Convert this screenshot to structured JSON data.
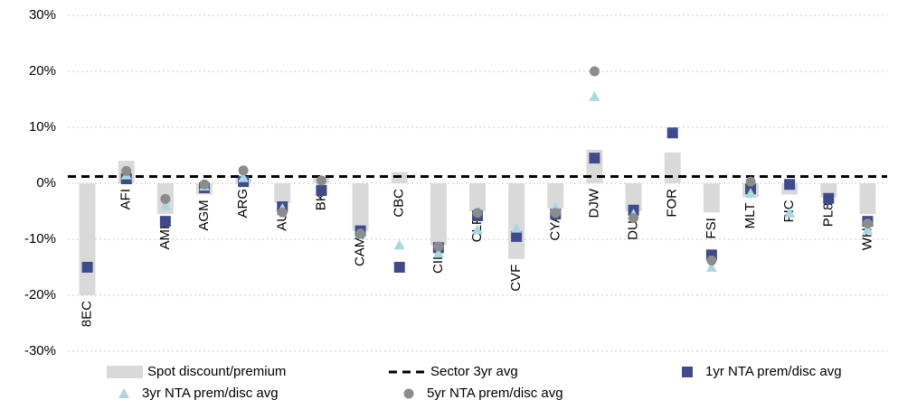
{
  "chart_data": {
    "type": "bar-scatter",
    "categories": [
      "8EC",
      "AFI",
      "AMH",
      "AGM",
      "ARG",
      "AUI",
      "BKI",
      "CAM",
      "CBC",
      "CIN",
      "CLF",
      "CVF",
      "CYA",
      "DJW",
      "DUI",
      "FOR",
      "FSI",
      "MLT",
      "PIC",
      "PL8",
      "WHF"
    ],
    "series": [
      {
        "name": "Spot discount/premium",
        "color": "#d9d9d9",
        "marker": "bar",
        "values": [
          -20,
          4,
          -5.5,
          -2,
          1.5,
          -3.5,
          1,
          -8.5,
          2,
          -11,
          -5,
          -13.5,
          -4.5,
          6,
          -5,
          5.5,
          -5.2,
          -2.5,
          -2,
          -2.5,
          -5.5
        ]
      },
      {
        "name": "1yr NTA prem/disc avg",
        "color": "#3f4a8a",
        "marker": "square",
        "values": [
          -15,
          0.8,
          -6.8,
          -0.8,
          0.3,
          -4.2,
          -1.3,
          -8.5,
          -15,
          -11.5,
          -5.8,
          -9.5,
          -5.5,
          4.5,
          -4.8,
          9,
          -12.8,
          -1,
          -0.2,
          -2.7,
          -6.8
        ]
      },
      {
        "name": "3yr NTA prem/disc avg",
        "color": "#a8d8e0",
        "marker": "triangle",
        "values": [
          null,
          1.5,
          -4,
          -0.5,
          1,
          -4.5,
          0.5,
          -9,
          -11,
          -12.5,
          -8.3,
          -8,
          -4.3,
          15.5,
          -5.5,
          null,
          -15,
          -1.8,
          -5.3,
          null,
          -8.3
        ]
      },
      {
        "name": "5yr NTA prem/disc avg",
        "color": "#8c8c8c",
        "marker": "circle",
        "values": [
          null,
          2.2,
          -2.8,
          -0.2,
          2.3,
          -5.2,
          0.5,
          -9,
          null,
          -11.3,
          -5.3,
          null,
          -5.3,
          20,
          -6.2,
          null,
          -13.8,
          0.3,
          null,
          null,
          -7.2
        ]
      }
    ],
    "reference_line": {
      "name": "Sector 3yr avg",
      "value": 1.2,
      "color": "#000000"
    },
    "ylim": [
      -30,
      30
    ],
    "yticks": [
      {
        "value": -30,
        "label": "-30%"
      },
      {
        "value": -20,
        "label": "-20%"
      },
      {
        "value": -10,
        "label": "-10%"
      },
      {
        "value": 0,
        "label": "0%"
      },
      {
        "value": 10,
        "label": "10%"
      },
      {
        "value": 20,
        "label": "20%"
      },
      {
        "value": 30,
        "label": "30%"
      }
    ],
    "grid": true
  }
}
